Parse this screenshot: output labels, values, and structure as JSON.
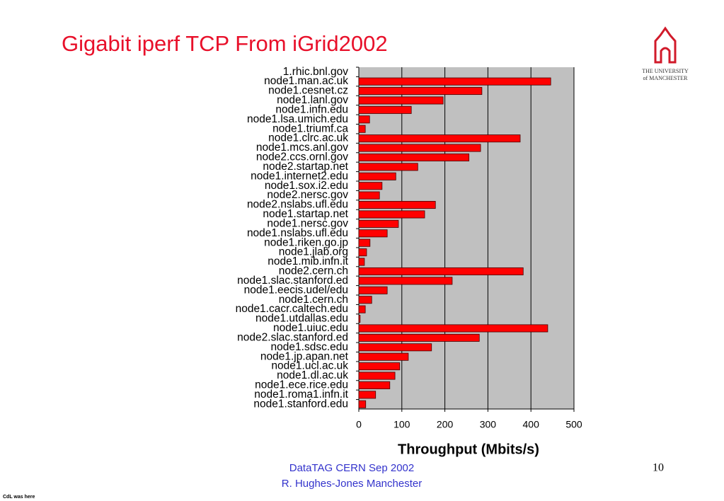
{
  "slide": {
    "logo_line1": "THE UNIVERSITY",
    "logo_line2": "of MANCHESTER",
    "footer_line1": "DataTAG CERN Sep  2002",
    "footer_line2": "R. Hughes-Jones  Manchester",
    "page_number": "10",
    "corner_note": "CdL was here"
  },
  "chart_data": {
    "type": "hbar",
    "title": "Gigabit iperf TCP From iGrid2002",
    "x_label": "Throughput (Mbits/s)",
    "categories": [
      "1.rhic.bnl.gov",
      "node1.man.ac.uk",
      "node1.cesnet.cz",
      "node1.lanl.gov",
      "node1.infn.edu",
      "node1.lsa.umich.edu",
      "node1.triumf.ca",
      "node1.clrc.ac.uk",
      "node1.mcs.anl.gov",
      "node2.ccs.ornl.gov",
      "node2.startap.net",
      "node1.internet2.edu",
      "node1.sox.i2.edu",
      "node2.nersc.gov",
      "node2.nslabs.ufl.edu",
      "node1.startap.net",
      "node1.nersc.gov",
      "node1.nslabs.ufl.edu",
      "node1.riken.go.jp",
      "node1.jlab.org",
      "node1.mib.infn.it",
      "node2.cern.ch",
      "node1.slac.stanford.ed",
      "node1.eecis.udel/edu",
      "node1.cern.ch",
      "node1.cacr.caltech.edu",
      "node1.utdallas.edu",
      "node1.uiuc.edu",
      "node2.slac.stanford.ed",
      "node1.sdsc.edu",
      "node1.jp.apan.net",
      "node1.ucl.ac.uk",
      "node1.dl.ac.uk",
      "node1.ece.rice.edu",
      "node1.roma1.infn.it",
      "node1.stanford.edu"
    ],
    "values": [
      0,
      446,
      286,
      196,
      122,
      25,
      15,
      375,
      283,
      256,
      137,
      86,
      54,
      48,
      178,
      153,
      92,
      66,
      26,
      18,
      13,
      382,
      217,
      66,
      30,
      15,
      3,
      439,
      280,
      169,
      115,
      95,
      84,
      72,
      39,
      16
    ],
    "color": "#ff0000",
    "xlim": [
      0,
      500
    ],
    "xticks": [
      0,
      100,
      200,
      300,
      400,
      500
    ],
    "grid": true
  }
}
